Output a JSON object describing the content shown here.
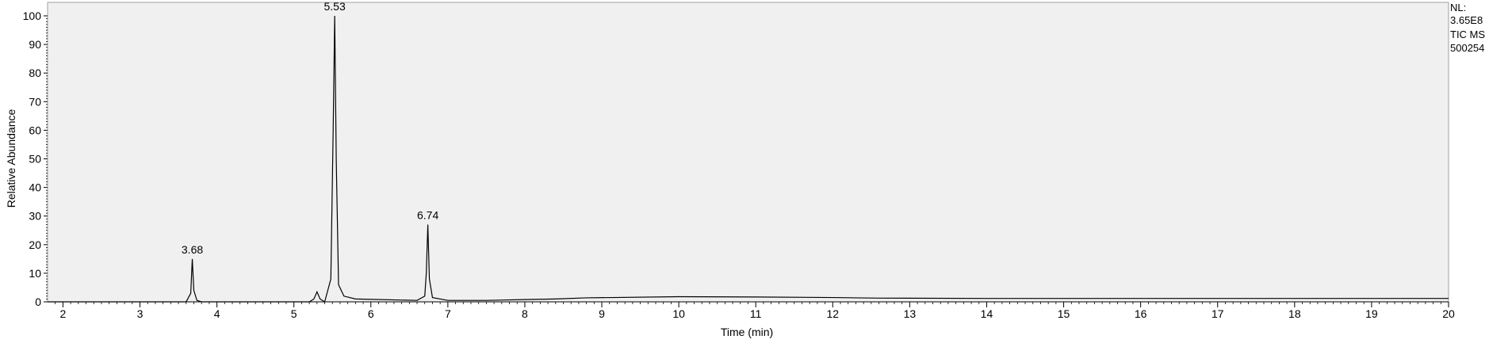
{
  "chart_data": {
    "type": "line",
    "title": "",
    "xlabel": "Time (min)",
    "ylabel": "Relative Abundance",
    "xlim": [
      1.8,
      20
    ],
    "ylim": [
      0,
      100
    ],
    "x_ticks": [
      2,
      3,
      4,
      5,
      6,
      7,
      8,
      9,
      10,
      11,
      12,
      13,
      14,
      15,
      16,
      17,
      18,
      19,
      20
    ],
    "y_ticks": [
      0,
      10,
      20,
      30,
      40,
      50,
      60,
      70,
      80,
      90,
      100
    ],
    "grid": false,
    "series": [
      {
        "name": "",
        "x": [
          1.8,
          3.6,
          3.66,
          3.68,
          3.7,
          3.74,
          3.8,
          5.2,
          5.26,
          5.3,
          5.34,
          5.4,
          5.48,
          5.51,
          5.53,
          5.55,
          5.58,
          5.65,
          5.8,
          6.6,
          6.7,
          6.72,
          6.74,
          6.76,
          6.8,
          7.0,
          7.5,
          8.0,
          8.4,
          8.8,
          10.0,
          11.0,
          12.0,
          12.6,
          14.0,
          16.0,
          18.0,
          20.0
        ],
        "y": [
          0,
          0,
          3,
          15,
          4,
          0.5,
          0,
          0,
          1,
          3.5,
          1,
          0,
          8,
          60,
          100,
          50,
          6,
          2,
          1,
          0.5,
          2,
          10,
          27,
          8,
          1.5,
          0.5,
          0.5,
          0.8,
          1,
          1.4,
          1.8,
          1.7,
          1.5,
          1.3,
          1.2,
          1.2,
          1.2,
          1.2
        ]
      }
    ],
    "peak_labels": [
      {
        "x": 3.68,
        "y": 15,
        "text": "3.68"
      },
      {
        "x": 5.53,
        "y": 100,
        "text": "5.53"
      },
      {
        "x": 6.74,
        "y": 27,
        "text": "6.74"
      }
    ]
  },
  "nl_info": {
    "line1": "NL:",
    "line2": "3.65E8",
    "line3": "TIC  MS",
    "line4": "500254"
  }
}
